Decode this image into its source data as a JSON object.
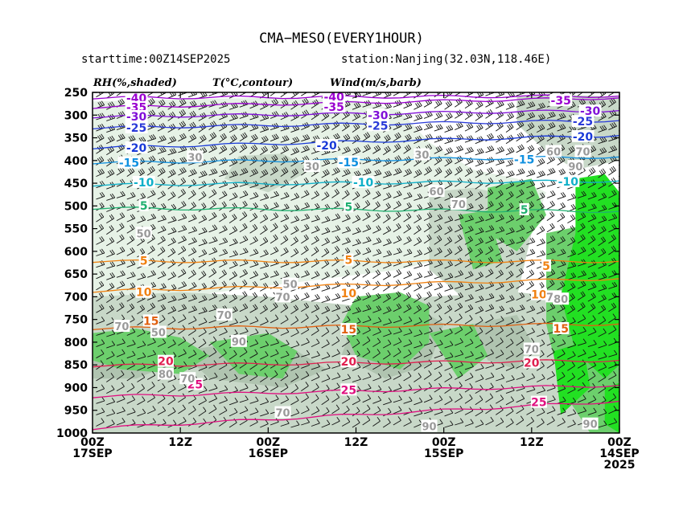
{
  "header": {
    "title": "CMA−MESO(EVERY1HOUR)",
    "starttime": "starttime:00Z14SEP2025",
    "station": "station:Nanjing(32.03N,118.46E)"
  },
  "legend_labels": {
    "rh": "RH(%,shaded)",
    "temp": "T(°C,contour)",
    "wind": "Wind(m/s,barb)"
  },
  "chart_data": {
    "type": "heatmap",
    "y_axis": {
      "ticks": [
        250,
        300,
        350,
        400,
        450,
        500,
        550,
        600,
        650,
        700,
        750,
        800,
        850,
        900,
        950,
        1000
      ],
      "range": [
        250,
        1000
      ],
      "inverted": true
    },
    "x_axis": {
      "reversed": true,
      "ticks": [
        {
          "hours": 72,
          "line1": "00Z",
          "line2": "17SEP",
          "line3": ""
        },
        {
          "hours": 60,
          "line1": "12Z",
          "line2": "",
          "line3": ""
        },
        {
          "hours": 48,
          "line1": "00Z",
          "line2": "16SEP",
          "line3": ""
        },
        {
          "hours": 36,
          "line1": "12Z",
          "line2": "",
          "line3": ""
        },
        {
          "hours": 24,
          "line1": "00Z",
          "line2": "15SEP",
          "line3": ""
        },
        {
          "hours": 12,
          "line1": "12Z",
          "line2": "",
          "line3": ""
        },
        {
          "hours": 0,
          "line1": "00Z",
          "line2": "14SEP",
          "line3": "2025"
        }
      ],
      "range": [
        72,
        0
      ]
    },
    "temperature_contours": [
      {
        "value": "-40",
        "color": "#9a00d0",
        "p_left": 262,
        "p_right": 258,
        "labels": [
          {
            "hours": 66,
            "p": 262
          },
          {
            "hours": 39,
            "p": 260
          }
        ]
      },
      {
        "value": "-35",
        "color": "#9a00d0",
        "p_left": 283,
        "p_right": 262,
        "labels": [
          {
            "hours": 66,
            "p": 283
          },
          {
            "hours": 39,
            "p": 282
          },
          {
            "hours": 8,
            "p": 268
          }
        ]
      },
      {
        "value": "-30",
        "color": "#8010d8",
        "p_left": 304,
        "p_right": 290,
        "labels": [
          {
            "hours": 66,
            "p": 303
          },
          {
            "hours": 33,
            "p": 300
          },
          {
            "hours": 4,
            "p": 291
          }
        ]
      },
      {
        "value": "-25",
        "color": "#2a3ad8",
        "p_left": 328,
        "p_right": 312,
        "labels": [
          {
            "hours": 66,
            "p": 328
          },
          {
            "hours": 33,
            "p": 323
          },
          {
            "hours": 5,
            "p": 314
          }
        ]
      },
      {
        "value": "-20",
        "color": "#1a3ad8",
        "p_left": 372,
        "p_right": 345,
        "labels": [
          {
            "hours": 66,
            "p": 372
          },
          {
            "hours": 40,
            "p": 367
          },
          {
            "hours": 5,
            "p": 347
          }
        ]
      },
      {
        "value": "-15",
        "color": "#1090e0",
        "p_left": 405,
        "p_right": 392,
        "labels": [
          {
            "hours": 67,
            "p": 405
          },
          {
            "hours": 37,
            "p": 404
          },
          {
            "hours": 13,
            "p": 398
          }
        ]
      },
      {
        "value": "-10",
        "color": "#10b0c8",
        "p_left": 454,
        "p_right": 445,
        "labels": [
          {
            "hours": 65,
            "p": 448
          },
          {
            "hours": 35,
            "p": 448
          },
          {
            "hours": 7,
            "p": 446
          }
        ]
      },
      {
        "value": "5",
        "color": "#20b070",
        "p_left": 505,
        "p_right": 512,
        "labels": [
          {
            "hours": 65,
            "p": 499
          },
          {
            "hours": 37,
            "p": 502
          },
          {
            "hours": 13,
            "p": 508
          }
        ]
      },
      {
        "value": "5",
        "color": "#f08010",
        "p_left": 622,
        "p_right": 622,
        "labels": [
          {
            "hours": 65,
            "p": 621
          },
          {
            "hours": 37,
            "p": 619
          },
          {
            "hours": 10,
            "p": 632
          }
        ]
      },
      {
        "value": "10",
        "color": "#f08010",
        "p_left": 688,
        "p_right": 660,
        "labels": [
          {
            "hours": 65,
            "p": 690
          },
          {
            "hours": 37,
            "p": 692
          },
          {
            "hours": 11,
            "p": 695
          }
        ]
      },
      {
        "value": "15",
        "color": "#e06010",
        "p_left": 770,
        "p_right": 760,
        "labels": [
          {
            "hours": 64,
            "p": 753
          },
          {
            "hours": 37,
            "p": 772
          },
          {
            "hours": 8,
            "p": 770
          }
        ]
      },
      {
        "value": "20",
        "color": "#e02050",
        "p_left": 852,
        "p_right": 840,
        "labels": [
          {
            "hours": 62,
            "p": 842
          },
          {
            "hours": 37,
            "p": 843
          },
          {
            "hours": 12,
            "p": 845
          }
        ]
      },
      {
        "value": "25",
        "color": "#e01080",
        "p_left": 920,
        "p_right": 895,
        "labels": [
          {
            "hours": 58,
            "p": 893
          },
          {
            "hours": 37,
            "p": 905
          },
          {
            "hours": 11,
            "p": 932
          }
        ]
      },
      {
        "value": "25",
        "color": "#e01080",
        "p_left": 990,
        "p_right": 930,
        "labels": []
      }
    ],
    "rh_labels": [
      {
        "value": "30",
        "hours": 58,
        "p": 392
      },
      {
        "value": "30",
        "hours": 42,
        "p": 413
      },
      {
        "value": "30",
        "hours": 27,
        "p": 387
      },
      {
        "value": "60",
        "hours": 9,
        "p": 380
      },
      {
        "value": "70",
        "hours": 5,
        "p": 380
      },
      {
        "value": "90",
        "hours": 6,
        "p": 413
      },
      {
        "value": "60",
        "hours": 25,
        "p": 468
      },
      {
        "value": "70",
        "hours": 22,
        "p": 496
      },
      {
        "value": "50",
        "hours": 65,
        "p": 560
      },
      {
        "value": "50",
        "hours": 45,
        "p": 672
      },
      {
        "value": "70",
        "hours": 46,
        "p": 700
      },
      {
        "value": "70",
        "hours": 68,
        "p": 765
      },
      {
        "value": "50",
        "hours": 63,
        "p": 778
      },
      {
        "value": "70",
        "hours": 54,
        "p": 740
      },
      {
        "value": "90",
        "hours": 52,
        "p": 798
      },
      {
        "value": "80",
        "hours": 62,
        "p": 870
      },
      {
        "value": "70",
        "hours": 59,
        "p": 880
      },
      {
        "value": "70",
        "hours": 46,
        "p": 955
      },
      {
        "value": "90",
        "hours": 26,
        "p": 985
      },
      {
        "value": "70",
        "hours": 12,
        "p": 815
      },
      {
        "value": "70",
        "hours": 9,
        "p": 700
      },
      {
        "value": "80",
        "hours": 8,
        "p": 705
      },
      {
        "value": "90",
        "hours": 4,
        "p": 980
      }
    ],
    "rh_levels": [
      {
        "min": 0,
        "max": 30,
        "color": "#ffffff"
      },
      {
        "min": 30,
        "max": 60,
        "color": "#e6f2e6"
      },
      {
        "min": 60,
        "max": 70,
        "color": "#c8d8c8"
      },
      {
        "min": 70,
        "max": 80,
        "color": "#b0c4b0"
      },
      {
        "min": 80,
        "max": 90,
        "color": "#6ccf6c"
      },
      {
        "min": 90,
        "max": 100,
        "color": "#22e022"
      }
    ]
  }
}
